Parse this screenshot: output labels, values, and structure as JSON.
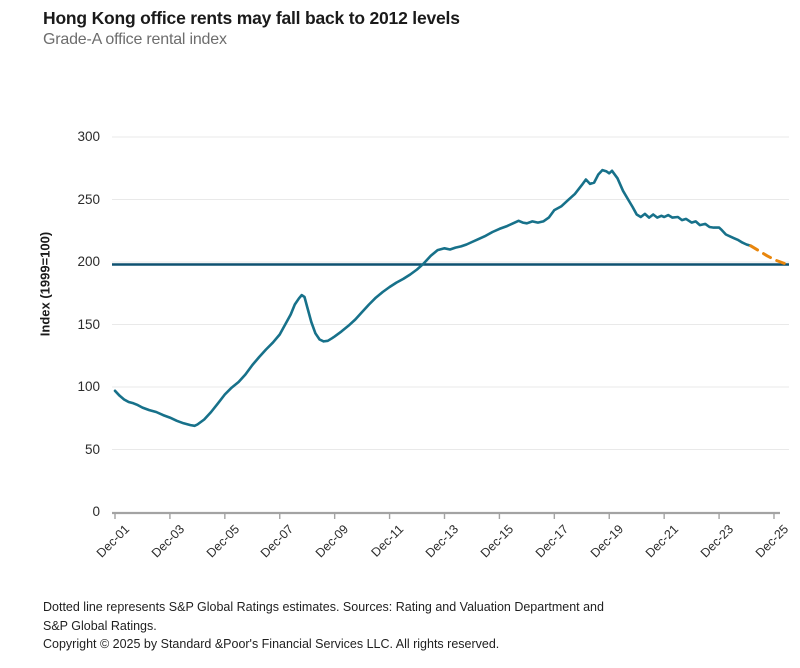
{
  "header": {
    "title": "Hong Kong office rents may fall back to 2012 levels",
    "subtitle": "Grade-A office rental index"
  },
  "chart_data": {
    "type": "line",
    "title": "Hong Kong office rents may fall back to 2012 levels",
    "subtitle": "Grade-A office rental index",
    "xlabel": "",
    "ylabel": "Index (1999=100)",
    "ylim": [
      0,
      300
    ],
    "yticks": [
      0,
      50,
      100,
      150,
      200,
      250,
      300
    ],
    "xticks": [
      "Dec-01",
      "Dec-03",
      "Dec-05",
      "Dec-07",
      "Dec-09",
      "Dec-11",
      "Dec-13",
      "Dec-15",
      "Dec-17",
      "Dec-19",
      "Dec-21",
      "Dec-23",
      "Dec-25"
    ],
    "x_unit": "years since Dec-01",
    "grid": "horizontal",
    "legend_position": "none",
    "reference_line": {
      "value": 198,
      "color": "#0f5170"
    },
    "series": [
      {
        "name": "Grade-A office rental index (actual)",
        "style": "solid",
        "color": "#17718a",
        "points": [
          [
            0,
            97
          ],
          [
            0.17,
            93
          ],
          [
            0.33,
            90
          ],
          [
            0.5,
            88
          ],
          [
            0.67,
            87
          ],
          [
            0.83,
            85.5
          ],
          [
            1,
            83.5
          ],
          [
            1.25,
            81.5
          ],
          [
            1.5,
            80
          ],
          [
            1.75,
            77.5
          ],
          [
            2,
            75.5
          ],
          [
            2.25,
            73
          ],
          [
            2.5,
            71
          ],
          [
            2.75,
            69.5
          ],
          [
            2.9,
            69
          ],
          [
            3,
            70
          ],
          [
            3.25,
            74
          ],
          [
            3.5,
            80
          ],
          [
            3.75,
            87
          ],
          [
            4,
            94
          ],
          [
            4.25,
            99.5
          ],
          [
            4.5,
            104
          ],
          [
            4.75,
            110
          ],
          [
            5,
            117.5
          ],
          [
            5.25,
            124
          ],
          [
            5.5,
            130
          ],
          [
            5.75,
            135.5
          ],
          [
            6,
            142
          ],
          [
            6.2,
            150
          ],
          [
            6.4,
            158
          ],
          [
            6.55,
            166
          ],
          [
            6.7,
            171
          ],
          [
            6.8,
            173.5
          ],
          [
            6.9,
            172
          ],
          [
            7,
            164
          ],
          [
            7.15,
            152
          ],
          [
            7.3,
            143
          ],
          [
            7.45,
            138
          ],
          [
            7.6,
            136.5
          ],
          [
            7.75,
            137
          ],
          [
            7.9,
            139
          ],
          [
            8,
            140.5
          ],
          [
            8.25,
            144.5
          ],
          [
            8.5,
            149
          ],
          [
            8.75,
            154
          ],
          [
            9,
            160
          ],
          [
            9.25,
            166
          ],
          [
            9.5,
            171.5
          ],
          [
            9.75,
            176
          ],
          [
            10,
            180
          ],
          [
            10.25,
            183.5
          ],
          [
            10.5,
            186.5
          ],
          [
            10.75,
            190
          ],
          [
            11,
            194
          ],
          [
            11.25,
            199
          ],
          [
            11.5,
            205
          ],
          [
            11.75,
            209.5
          ],
          [
            12,
            211
          ],
          [
            12.2,
            210
          ],
          [
            12.4,
            211.5
          ],
          [
            12.6,
            212.5
          ],
          [
            12.8,
            214
          ],
          [
            13,
            216
          ],
          [
            13.25,
            218.5
          ],
          [
            13.5,
            221
          ],
          [
            13.75,
            224
          ],
          [
            14,
            226.5
          ],
          [
            14.25,
            228.5
          ],
          [
            14.5,
            231
          ],
          [
            14.7,
            233
          ],
          [
            14.85,
            231.5
          ],
          [
            15,
            231
          ],
          [
            15.2,
            232.5
          ],
          [
            15.4,
            231.5
          ],
          [
            15.6,
            232.5
          ],
          [
            15.8,
            235.5
          ],
          [
            16,
            241.5
          ],
          [
            16.25,
            244.5
          ],
          [
            16.5,
            249.5
          ],
          [
            16.75,
            254.5
          ],
          [
            17,
            261.5
          ],
          [
            17.15,
            266
          ],
          [
            17.3,
            262.5
          ],
          [
            17.45,
            263.5
          ],
          [
            17.6,
            270
          ],
          [
            17.75,
            273.5
          ],
          [
            17.9,
            272.5
          ],
          [
            18,
            271
          ],
          [
            18.1,
            273
          ],
          [
            18.3,
            267
          ],
          [
            18.5,
            257
          ],
          [
            18.7,
            249.5
          ],
          [
            18.85,
            244
          ],
          [
            19,
            238
          ],
          [
            19.15,
            236
          ],
          [
            19.3,
            238.5
          ],
          [
            19.45,
            235.5
          ],
          [
            19.6,
            238
          ],
          [
            19.75,
            235.5
          ],
          [
            19.9,
            237
          ],
          [
            20,
            236
          ],
          [
            20.15,
            237.5
          ],
          [
            20.3,
            235.5
          ],
          [
            20.5,
            236
          ],
          [
            20.65,
            233.5
          ],
          [
            20.8,
            234.5
          ],
          [
            21,
            231.5
          ],
          [
            21.15,
            232.5
          ],
          [
            21.3,
            229.5
          ],
          [
            21.5,
            230.5
          ],
          [
            21.65,
            228
          ],
          [
            21.8,
            227.5
          ],
          [
            22,
            227.5
          ],
          [
            22.1,
            225.5
          ],
          [
            22.25,
            222
          ],
          [
            22.4,
            220.5
          ],
          [
            22.55,
            219
          ],
          [
            22.7,
            217.5
          ],
          [
            22.85,
            215.5
          ],
          [
            23,
            214
          ],
          [
            23.15,
            213
          ]
        ]
      },
      {
        "name": "S&P Global Ratings estimates",
        "style": "dashed",
        "color": "#e8860d",
        "points": [
          [
            23.15,
            213
          ],
          [
            23.45,
            209
          ],
          [
            23.75,
            205
          ],
          [
            24.05,
            201.5
          ],
          [
            24.3,
            199.5
          ],
          [
            24.45,
            198.3
          ]
        ]
      }
    ]
  },
  "footnotes": {
    "note": "Dotted line represents S&P Global Ratings estimates. Sources: Rating and Valuation Department and S&P Global Ratings.",
    "copyright": "Copyright © 2025 by Standard &Poor's Financial Services LLC. All rights reserved."
  },
  "colors": {
    "actual_line": "#17718a",
    "estimate_line": "#e8860d",
    "reference_line": "#0f5170",
    "gridline": "#e9e9e9",
    "axis": "#a3a3a3",
    "title_text": "#1a1a1a",
    "subtitle_text": "#6d6d6d"
  }
}
